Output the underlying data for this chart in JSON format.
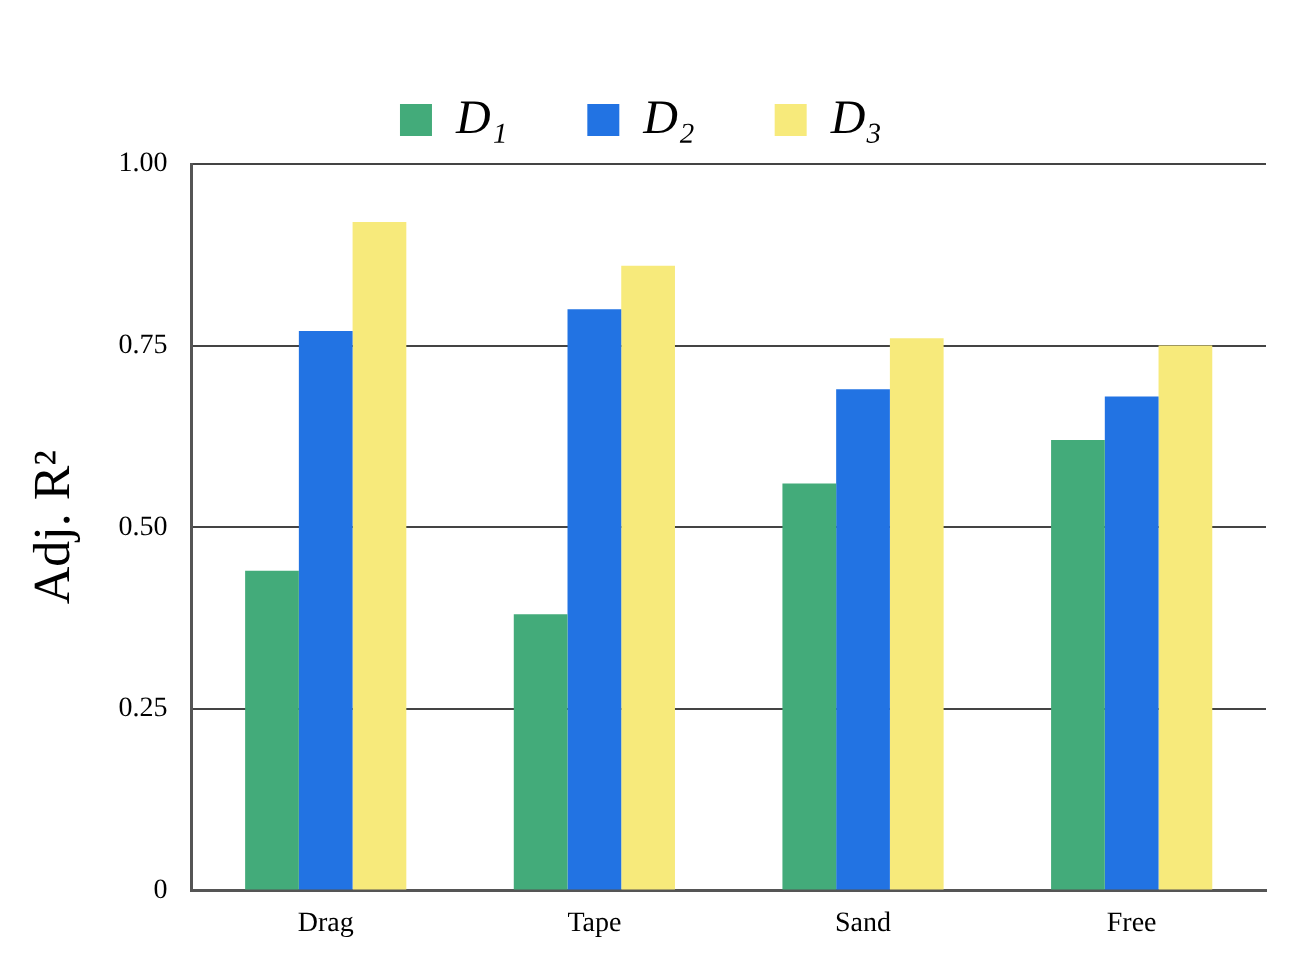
{
  "chart_data": {
    "type": "bar",
    "ylabel": "Adj. R²",
    "categories": [
      "Drag",
      "Tape",
      "Sand",
      "Free"
    ],
    "series": [
      {
        "name": "D₁",
        "color": "#43ab7a",
        "values": [
          0.44,
          0.38,
          0.56,
          0.62
        ]
      },
      {
        "name": "D₂",
        "color": "#2273e3",
        "values": [
          0.77,
          0.8,
          0.69,
          0.68
        ]
      },
      {
        "name": "D₃",
        "color": "#f7ea7b",
        "values": [
          0.92,
          0.86,
          0.76,
          0.75
        ]
      }
    ],
    "ylim": [
      0,
      1
    ],
    "yticks": [
      {
        "value": 0,
        "label": "0"
      },
      {
        "value": 0.25,
        "label": "0.25"
      },
      {
        "value": 0.5,
        "label": "0.50"
      },
      {
        "value": 0.75,
        "label": "0.75"
      },
      {
        "value": 1,
        "label": "1.00"
      }
    ],
    "grid": "y",
    "legend": "top"
  }
}
